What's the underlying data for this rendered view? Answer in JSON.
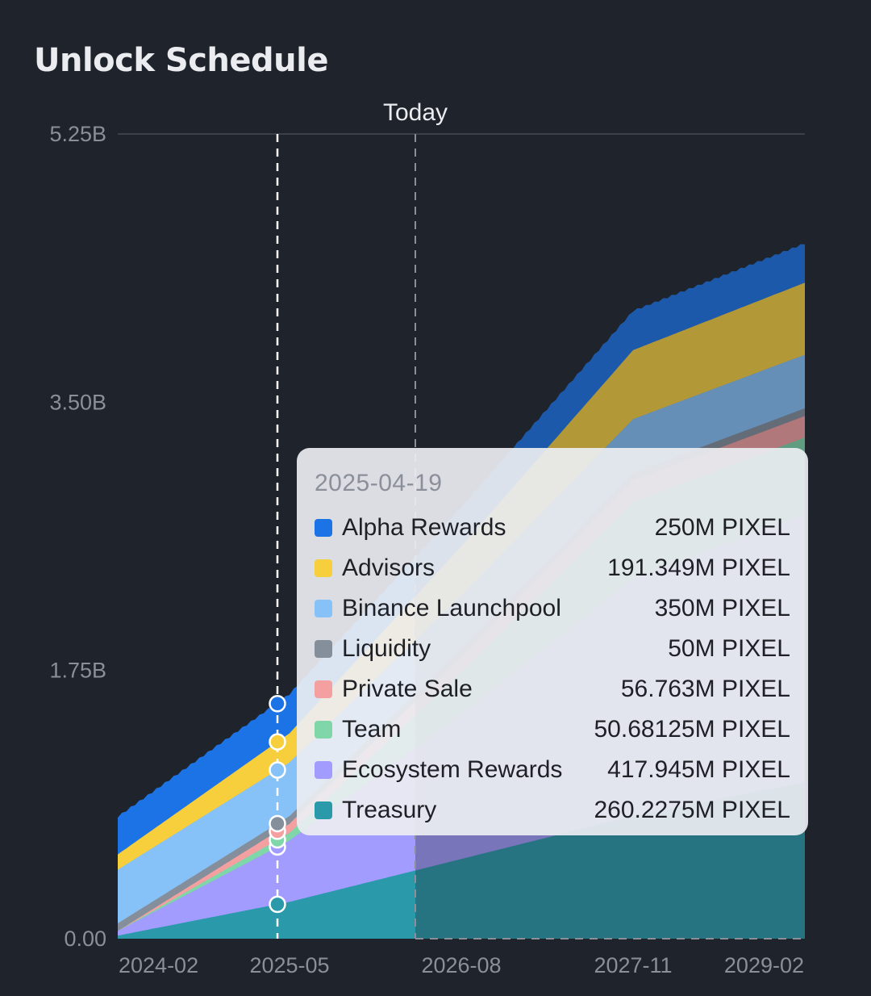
{
  "header": {
    "title": "Unlock Schedule"
  },
  "chart_data": {
    "type": "area",
    "stacked": true,
    "ylim": [
      0,
      5.25
    ],
    "y_unit": "B",
    "y_ticks": [
      "0.00",
      "1.75B",
      "3.50B",
      "5.25B"
    ],
    "x_tick_labels": [
      "2024-02",
      "2025-05",
      "2026-08",
      "2027-11",
      "2029-02"
    ],
    "today_label": "Today",
    "x": [
      "2024-02",
      "2025-05",
      "2026-08",
      "2027-11",
      "2029-02"
    ],
    "series": [
      {
        "name": "Treasury",
        "color": "#2a9aab",
        "values": [
          0.02,
          0.24,
          0.52,
          0.8,
          1.02
        ]
      },
      {
        "name": "Ecosystem Rewards",
        "color": "#a29cff",
        "values": [
          0.03,
          0.4,
          0.95,
          1.55,
          1.75
        ]
      },
      {
        "name": "Team",
        "color": "#7fd6a8",
        "values": [
          0.0,
          0.05,
          0.27,
          0.5,
          0.5
        ]
      },
      {
        "name": "Private Sale",
        "color": "#f5a0a0",
        "values": [
          0.0,
          0.06,
          0.1,
          0.14,
          0.14
        ]
      },
      {
        "name": "Liquidity",
        "color": "#858f9c",
        "values": [
          0.05,
          0.05,
          0.05,
          0.05,
          0.05
        ]
      },
      {
        "name": "Binance Launchpool",
        "color": "#86c2f8",
        "values": [
          0.35,
          0.35,
          0.35,
          0.35,
          0.35
        ]
      },
      {
        "name": "Advisors",
        "color": "#f7cf3c",
        "values": [
          0.1,
          0.19,
          0.32,
          0.45,
          0.47
        ]
      },
      {
        "name": "Alpha Rewards",
        "color": "#1c73e6",
        "values": [
          0.24,
          0.25,
          0.25,
          0.25,
          0.25
        ]
      }
    ],
    "marker_date": "2025-04-19",
    "marker_x": "2025-04"
  },
  "tooltip": {
    "date": "2025-04-19",
    "rows": [
      {
        "name": "Alpha Rewards",
        "value": "250M PIXEL",
        "color": "#1c73e6"
      },
      {
        "name": "Advisors",
        "value": "191.349M PIXEL",
        "color": "#f7cf3c"
      },
      {
        "name": "Binance Launchpool",
        "value": "350M PIXEL",
        "color": "#86c2f8"
      },
      {
        "name": "Liquidity",
        "value": "50M PIXEL",
        "color": "#858f9c"
      },
      {
        "name": "Private Sale",
        "value": "56.763M PIXEL",
        "color": "#f5a0a0"
      },
      {
        "name": "Team",
        "value": "50.68125M PIXEL",
        "color": "#7fd6a8"
      },
      {
        "name": "Ecosystem Rewards",
        "value": "417.945M PIXEL",
        "color": "#a29cff"
      },
      {
        "name": "Treasury",
        "value": "260.2275M PIXEL",
        "color": "#2a9aab"
      }
    ]
  }
}
